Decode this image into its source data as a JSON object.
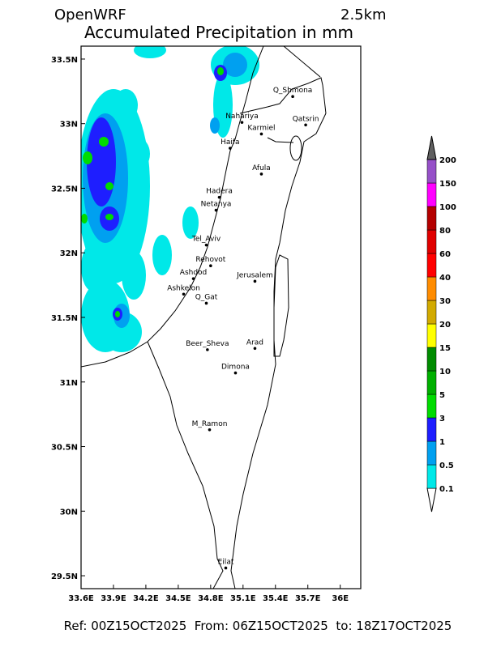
{
  "header": {
    "title": "OpenWRF",
    "resolution": "2.5km",
    "subtitle": "Accumulated Precipitation in mm"
  },
  "map": {
    "lonlim": [
      33.6,
      36.19
    ],
    "latlim": [
      29.4,
      33.6
    ],
    "lon_ticks": [
      {
        "value": 33.6,
        "label": "33.6E"
      },
      {
        "value": 33.9,
        "label": "33.9E"
      },
      {
        "value": 34.2,
        "label": "34.2E"
      },
      {
        "value": 34.5,
        "label": "34.5E"
      },
      {
        "value": 34.8,
        "label": "34.8E"
      },
      {
        "value": 35.1,
        "label": "35.1E"
      },
      {
        "value": 35.4,
        "label": "35.4E"
      },
      {
        "value": 35.7,
        "label": "35.7E"
      },
      {
        "value": 36,
        "label": "36E"
      }
    ],
    "lat_ticks": [
      {
        "value": 29.5,
        "label": "29.5N"
      },
      {
        "value": 30,
        "label": "30N"
      },
      {
        "value": 30.5,
        "label": "30.5N"
      },
      {
        "value": 31,
        "label": "31N"
      },
      {
        "value": 31.5,
        "label": "31.5N"
      },
      {
        "value": 32,
        "label": "32N"
      },
      {
        "value": 32.5,
        "label": "32.5N"
      },
      {
        "value": 33,
        "label": "33N"
      },
      {
        "value": 33.5,
        "label": "33.5N"
      }
    ],
    "cities": [
      {
        "name": "Q_Shmona",
        "lon": 35.56,
        "lat": 33.21
      },
      {
        "name": "Nahariya",
        "lon": 35.09,
        "lat": 33.01
      },
      {
        "name": "Karmiel",
        "lon": 35.27,
        "lat": 32.92
      },
      {
        "name": "Qatsrin",
        "lon": 35.68,
        "lat": 32.99
      },
      {
        "name": "Haifa",
        "lon": 34.98,
        "lat": 32.81
      },
      {
        "name": "Afula",
        "lon": 35.27,
        "lat": 32.61
      },
      {
        "name": "Hadera",
        "lon": 34.88,
        "lat": 32.43
      },
      {
        "name": "Netanya",
        "lon": 34.85,
        "lat": 32.33
      },
      {
        "name": "Tel_Aviv",
        "lon": 34.76,
        "lat": 32.06
      },
      {
        "name": "Rehovot",
        "lon": 34.8,
        "lat": 31.9
      },
      {
        "name": "Ashdod",
        "lon": 34.64,
        "lat": 31.8
      },
      {
        "name": "Jerusalem",
        "lon": 35.21,
        "lat": 31.78
      },
      {
        "name": "Ashkelon",
        "lon": 34.55,
        "lat": 31.68
      },
      {
        "name": "Q_Gat",
        "lon": 34.76,
        "lat": 31.61
      },
      {
        "name": "Beer_Sheva",
        "lon": 34.77,
        "lat": 31.25
      },
      {
        "name": "Arad",
        "lon": 35.21,
        "lat": 31.26
      },
      {
        "name": "Dimona",
        "lon": 35.03,
        "lat": 31.07
      },
      {
        "name": "M_Ramon",
        "lon": 34.79,
        "lat": 30.63
      },
      {
        "name": "Eilat",
        "lon": 34.94,
        "lat": 29.56
      }
    ]
  },
  "legend": {
    "levels": [
      0.1,
      0.5,
      1,
      3,
      5,
      10,
      15,
      20,
      30,
      40,
      60,
      80,
      100,
      150,
      200
    ],
    "colors": [
      "#ffffff",
      "#00e8e8",
      "#00a0f0",
      "#1e1eff",
      "#00dc00",
      "#00b000",
      "#008c00",
      "#ffff00",
      "#d2aa00",
      "#ff8c00",
      "#ff0000",
      "#e00000",
      "#b40000",
      "#ff00ff",
      "#9650c8",
      "#606060"
    ]
  },
  "footer": "Ref: 00Z15OCT2025  From: 06Z15OCT2025  to: 18Z17OCT2025"
}
